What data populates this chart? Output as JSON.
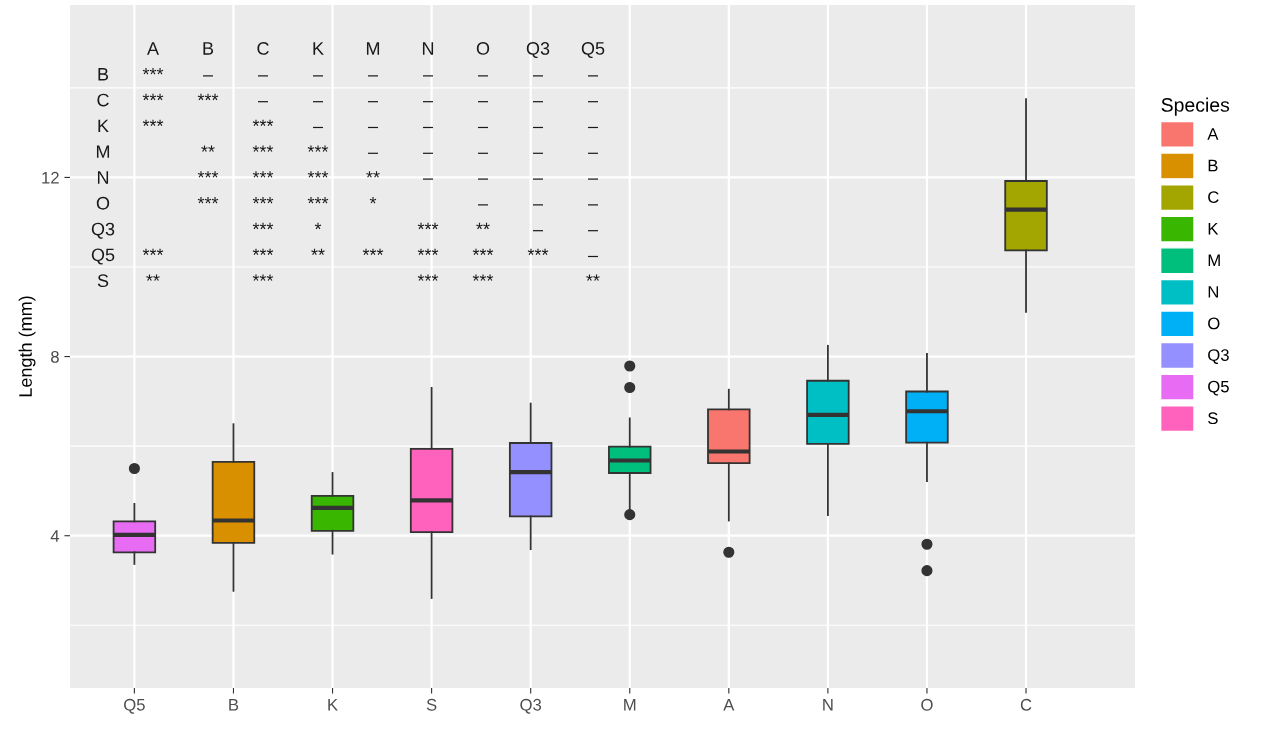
{
  "chart_data": {
    "type": "box",
    "ylabel": "Length (mm)",
    "legend_title": "Species",
    "legend": "right",
    "grid": true,
    "categories": [
      "Q5",
      "B",
      "K",
      "S",
      "Q3",
      "M",
      "A",
      "N",
      "O",
      "C"
    ],
    "ylim": [
      0.6,
      15.85
    ],
    "yticks": [
      4,
      8,
      12
    ],
    "series": [
      {
        "name": "A",
        "color": "#f8766d",
        "boxes": [
          null,
          null,
          null,
          null,
          null,
          null,
          {
            "low": 4.34,
            "q1": 5.62,
            "median": 5.88,
            "q3": 6.82,
            "high": 7.26,
            "outliers": [
              3.63
            ]
          },
          null,
          null,
          null
        ]
      },
      {
        "name": "B",
        "color": "#d89000",
        "boxes": [
          null,
          {
            "low": 2.77,
            "q1": 3.84,
            "median": 4.34,
            "q3": 5.65,
            "high": 6.49
          },
          null,
          null,
          null,
          null,
          null,
          null,
          null,
          null
        ]
      },
      {
        "name": "C",
        "color": "#a3a500",
        "boxes": [
          null,
          null,
          null,
          null,
          null,
          null,
          null,
          null,
          null,
          {
            "low": 9.0,
            "q1": 10.37,
            "median": 11.28,
            "q3": 11.92,
            "high": 13.75
          }
        ]
      },
      {
        "name": "K",
        "color": "#39b600",
        "boxes": [
          null,
          null,
          {
            "low": 3.6,
            "q1": 4.11,
            "median": 4.62,
            "q3": 4.89,
            "high": 5.4
          },
          null,
          null,
          null,
          null,
          null,
          null,
          null
        ]
      },
      {
        "name": "M",
        "color": "#00bf7d",
        "boxes": [
          null,
          null,
          null,
          null,
          null,
          {
            "low": 4.55,
            "q1": 5.4,
            "median": 5.68,
            "q3": 5.99,
            "high": 6.62,
            "outliers": [
              4.47,
              7.31,
              7.79
            ]
          },
          null,
          null,
          null,
          null
        ]
      },
      {
        "name": "N",
        "color": "#00bfc4",
        "boxes": [
          null,
          null,
          null,
          null,
          null,
          null,
          null,
          {
            "low": 4.46,
            "q1": 6.05,
            "median": 6.7,
            "q3": 7.46,
            "high": 8.24
          },
          null,
          null
        ]
      },
      {
        "name": "O",
        "color": "#00b0f6",
        "boxes": [
          null,
          null,
          null,
          null,
          null,
          null,
          null,
          null,
          {
            "low": 5.22,
            "q1": 6.08,
            "median": 6.78,
            "q3": 7.22,
            "high": 8.06,
            "outliers": [
              3.22,
              3.81
            ]
          },
          null
        ]
      },
      {
        "name": "Q3",
        "color": "#9590ff",
        "boxes": [
          null,
          null,
          null,
          null,
          {
            "low": 3.7,
            "q1": 4.43,
            "median": 5.42,
            "q3": 6.07,
            "high": 6.95
          },
          null,
          null,
          null,
          null,
          null
        ]
      },
      {
        "name": "Q5",
        "color": "#e76bf3",
        "boxes": [
          {
            "low": 3.37,
            "q1": 3.63,
            "median": 4.02,
            "q3": 4.32,
            "high": 4.71,
            "outliers": [
              5.5
            ]
          },
          null,
          null,
          null,
          null,
          null,
          null,
          null,
          null,
          null
        ]
      },
      {
        "name": "S",
        "color": "#ff62bc",
        "boxes": [
          null,
          null,
          null,
          {
            "low": 2.61,
            "q1": 4.08,
            "median": 4.79,
            "q3": 5.94,
            "high": 7.3
          },
          null,
          null,
          null,
          null,
          null,
          null
        ]
      }
    ],
    "annotations": [
      "\tA\tB\tC\tK\tM\tN\tO\tQ3\tQ5",
      "B\t***\t–\t–\t–\t–\t–\t–\t–\t–",
      "C\t***\t***\t–\t–\t–\t–\t–\t–\t–",
      "K\t***\t\t***\t–\t–\t–\t–\t–\t–",
      "M\t\t**\t***\t***\t–\t–\t–\t–\t–",
      "N\t\t***\t***\t***\t**\t–\t–\t–\t–",
      "O\t\t***\t***\t***\t*\t\t–\t–\t–",
      "Q3\t\t\t***\t*\t\t***\t**\t–\t–",
      "Q5\t***\t\t***\t**\t***\t***\t***\t***\t–",
      "S\t**\t\t***\t\t\t***\t***\t\t**"
    ]
  }
}
